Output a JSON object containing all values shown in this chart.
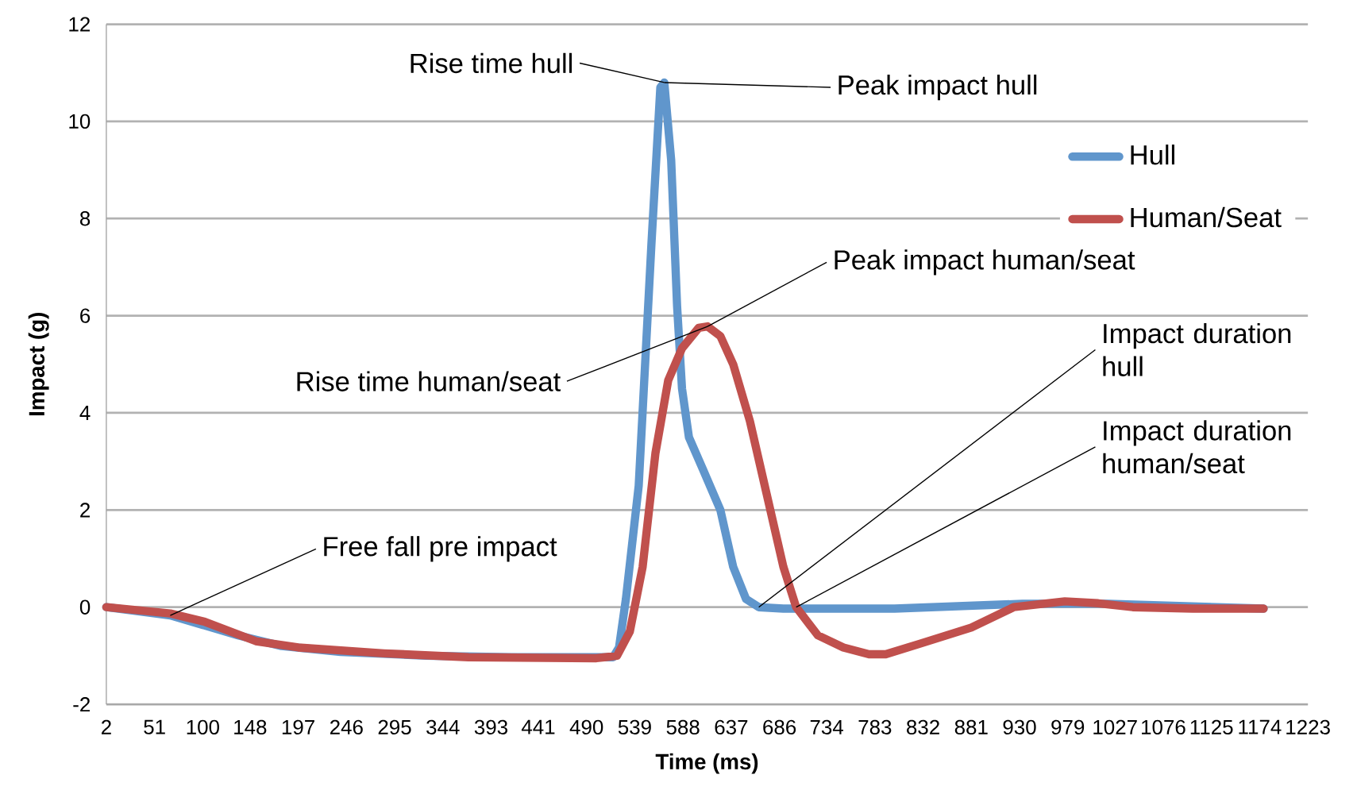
{
  "chart_data": {
    "type": "line",
    "xlabel": "Time (ms)",
    "ylabel": "Impact (g)",
    "xlim": [
      2,
      1223
    ],
    "ylim": [
      -2,
      12
    ],
    "xticks": [
      2,
      51,
      100,
      148,
      197,
      246,
      295,
      344,
      393,
      441,
      490,
      539,
      588,
      637,
      686,
      734,
      783,
      832,
      881,
      930,
      979,
      1027,
      1076,
      1125,
      1174,
      1223
    ],
    "yticks": [
      -2,
      0,
      2,
      4,
      6,
      8,
      10,
      12
    ],
    "grid": "y",
    "legend": "top right",
    "series": [
      {
        "name": "Hull",
        "color": "#6096cc",
        "x": [
          2,
          67,
          136,
          180,
          240,
          327,
          413,
          517,
          523,
          530,
          543,
          556,
          565,
          569,
          576,
          582,
          587,
          594,
          608,
          626,
          639,
          652,
          665,
          690,
          803,
          933,
          1020,
          1178
        ],
        "values": [
          0,
          -0.17,
          -0.58,
          -0.8,
          -0.92,
          -1.0,
          -1.03,
          -1.03,
          -0.83,
          0.17,
          2.5,
          7.5,
          10.7,
          10.8,
          9.2,
          6.2,
          4.5,
          3.5,
          2.85,
          2.0,
          0.83,
          0.17,
          0.0,
          -0.03,
          -0.03,
          0.07,
          0.07,
          -0.03
        ]
      },
      {
        "name": "Human/Seat",
        "color": "#c0504d",
        "x": [
          2,
          67,
          102,
          154,
          197,
          284,
          370,
          500,
          521,
          534,
          547,
          560,
          573,
          587,
          604,
          613,
          626,
          639,
          656,
          673,
          690,
          703,
          725,
          751,
          777,
          794,
          829,
          881,
          924,
          976,
          1010,
          1045,
          1106,
          1178
        ],
        "values": [
          0,
          -0.13,
          -0.3,
          -0.7,
          -0.83,
          -0.95,
          -1.03,
          -1.05,
          -1.0,
          -0.5,
          0.83,
          3.17,
          4.67,
          5.33,
          5.75,
          5.78,
          5.58,
          5.0,
          3.83,
          2.33,
          0.83,
          0,
          -0.58,
          -0.83,
          -0.97,
          -0.97,
          -0.75,
          -0.42,
          0,
          0.12,
          0.08,
          0,
          -0.03,
          -0.03
        ]
      }
    ],
    "annotations": [
      {
        "text": "Free fall pre impact",
        "x": 67,
        "y": -0.17
      },
      {
        "text": "Rise time hull",
        "x": 569,
        "y": 10.8
      },
      {
        "text": "Peak impact hull",
        "x": 569,
        "y": 10.8
      },
      {
        "text": "Peak impact human/seat",
        "x": 613,
        "y": 5.78
      },
      {
        "text": "Rise time human/seat",
        "x": 613,
        "y": 5.78
      },
      {
        "text": "Impact duration hull",
        "x": 665,
        "y": 0
      },
      {
        "text": "Impact duration human/seat",
        "x": 703,
        "y": 0
      }
    ]
  }
}
